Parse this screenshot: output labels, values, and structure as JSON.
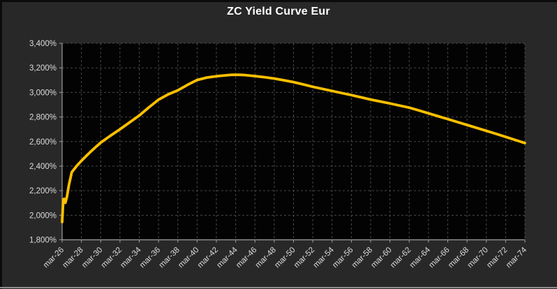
{
  "colors": {
    "background": "#282828",
    "plot_background": "#030303",
    "curve": "#FFC000",
    "gridline": "#484848",
    "axis": "#9e9e9e",
    "tick_label": "#dcdcdc",
    "title": "#ffffff",
    "window_border": "#0b0b0b",
    "bottom_line": "#8f8f8f"
  },
  "chart_data": {
    "type": "line",
    "title": "ZC Yield Curve Eur",
    "legend": "none",
    "grid": "dashed gray horizontal and vertical on black plot area",
    "x_min_years": 0,
    "x_max_years": 48,
    "y_min": 1800,
    "y_max": 3400,
    "y_tick_labels": [
      "3,400%",
      "3,200%",
      "3,000%",
      "2,800%",
      "2,600%",
      "2,400%",
      "2,200%",
      "2,000%",
      "1,800%"
    ],
    "y_tick_values": [
      3400,
      3200,
      3000,
      2800,
      2600,
      2400,
      2200,
      2000,
      1800
    ],
    "x_tick_labels": [
      "mar-26",
      "mar-28",
      "mar-30",
      "mar-32",
      "mar-34",
      "mar-36",
      "mar-38",
      "mar-40",
      "mar-42",
      "mar-44",
      "mar-46",
      "mar-48",
      "mar-50",
      "mar-52",
      "mar-54",
      "mar-56",
      "mar-58",
      "mar-60",
      "mar-62",
      "mar-64",
      "mar-66",
      "mar-68",
      "mar-70",
      "mar-72",
      "mar-74"
    ],
    "x_tick_positions_years": [
      0,
      2,
      4,
      6,
      8,
      10,
      12,
      14,
      16,
      18,
      20,
      22,
      24,
      26,
      28,
      30,
      32,
      34,
      36,
      38,
      40,
      42,
      44,
      46,
      48
    ],
    "series": [
      {
        "name": "ZC Yield Curve Eur",
        "color": "#FFC000",
        "points_years_value": [
          [
            0,
            1945
          ],
          [
            0.08,
            2065
          ],
          [
            0.13,
            2130
          ],
          [
            0.2,
            2133
          ],
          [
            0.33,
            2101
          ],
          [
            0.5,
            2150
          ],
          [
            0.7,
            2245
          ],
          [
            1,
            2350
          ],
          [
            1.5,
            2400
          ],
          [
            2,
            2443
          ],
          [
            2.5,
            2482
          ],
          [
            3,
            2520
          ],
          [
            3.5,
            2556
          ],
          [
            4,
            2591
          ],
          [
            5,
            2647
          ],
          [
            6,
            2700
          ],
          [
            7,
            2756
          ],
          [
            8,
            2812
          ],
          [
            9,
            2878
          ],
          [
            10,
            2941
          ],
          [
            11,
            2984
          ],
          [
            12,
            3017
          ],
          [
            13,
            3061
          ],
          [
            14,
            3101
          ],
          [
            15,
            3121
          ],
          [
            16,
            3132
          ],
          [
            17,
            3139
          ],
          [
            17.6,
            3143
          ],
          [
            18.5,
            3143
          ],
          [
            19,
            3141
          ],
          [
            20,
            3133
          ],
          [
            21,
            3124
          ],
          [
            22,
            3113
          ],
          [
            23,
            3099
          ],
          [
            24,
            3084
          ],
          [
            25,
            3065
          ],
          [
            26,
            3046
          ],
          [
            27,
            3029
          ],
          [
            28,
            3012
          ],
          [
            29,
            2995
          ],
          [
            30,
            2978
          ],
          [
            31,
            2960
          ],
          [
            32,
            2942
          ],
          [
            33,
            2926
          ],
          [
            34,
            2910
          ],
          [
            35,
            2893
          ],
          [
            36,
            2876
          ],
          [
            37,
            2853
          ],
          [
            38,
            2830
          ],
          [
            39,
            2806
          ],
          [
            40,
            2783
          ],
          [
            41,
            2759
          ],
          [
            42,
            2735
          ],
          [
            43,
            2711
          ],
          [
            44,
            2687
          ],
          [
            45,
            2663
          ],
          [
            46,
            2638
          ],
          [
            47,
            2613
          ],
          [
            48,
            2588
          ]
        ]
      }
    ]
  }
}
